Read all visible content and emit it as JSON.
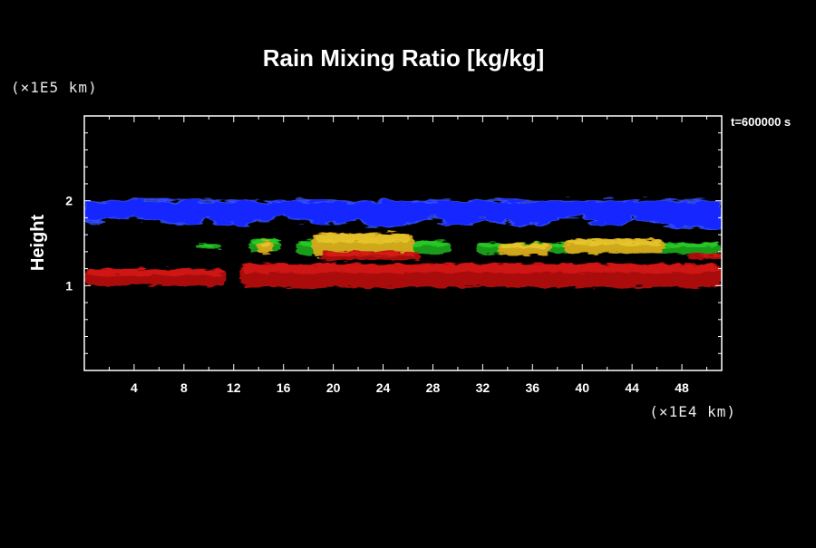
{
  "chart_data": {
    "type": "heatmap",
    "title": "Rain Mixing Ratio [kg/kg]",
    "ylabel": "Height",
    "xlabel": "",
    "x_unit": "(×1E4 km)",
    "y_unit": "(×1E5 km)",
    "time": "t=600000 s",
    "xlim": [
      0,
      51.2
    ],
    "ylim": [
      0,
      3
    ],
    "x_ticks": [
      4,
      8,
      12,
      16,
      20,
      24,
      28,
      32,
      36,
      40,
      44,
      48
    ],
    "y_ticks": [
      1,
      2
    ],
    "x_minor_step": 2,
    "y_minor_step": 0.2,
    "grid": false,
    "background": "#000000",
    "layers": [
      {
        "color": "#1428ff",
        "edge_color": "#3c5cff",
        "y_top": 2.0,
        "x": [
          0,
          2,
          4,
          6,
          8,
          10,
          12,
          14,
          16,
          18,
          20,
          22,
          24,
          26,
          28,
          30,
          32,
          34,
          36,
          38,
          40,
          42,
          44,
          46,
          48,
          51.2
        ],
        "y_bottom": [
          1.76,
          1.8,
          1.84,
          1.78,
          1.74,
          1.79,
          1.73,
          1.8,
          1.84,
          1.78,
          1.76,
          1.8,
          1.71,
          1.77,
          1.82,
          1.74,
          1.8,
          1.77,
          1.73,
          1.8,
          1.83,
          1.74,
          1.82,
          1.77,
          1.71,
          1.7
        ]
      },
      {
        "color": "#1ea51e",
        "edge_color": "#34ff2e",
        "segments": [
          {
            "x": [
              9.0,
              11.0
            ],
            "y": [
              1.44,
              1.49
            ]
          },
          {
            "x": [
              13.2,
              15.8
            ],
            "y": [
              1.4,
              1.55
            ]
          },
          {
            "x": [
              17.0,
              29.5
            ],
            "y": [
              1.37,
              1.53
            ]
          },
          {
            "x": [
              31.5,
              51.2
            ],
            "y": [
              1.38,
              1.51
            ]
          }
        ]
      },
      {
        "color": "#d9a81f",
        "edge_color": "#ffea3c",
        "segments": [
          {
            "x": [
              13.8,
              15.2
            ],
            "y": [
              1.39,
              1.52
            ]
          },
          {
            "x": [
              18.3,
              26.4
            ],
            "y": [
              1.34,
              1.62
            ]
          },
          {
            "x": [
              33.2,
              37.5
            ],
            "y": [
              1.36,
              1.5
            ]
          },
          {
            "x": [
              38.5,
              46.6
            ],
            "y": [
              1.38,
              1.55
            ]
          }
        ]
      },
      {
        "color": "#b40f0f",
        "edge_color": "#ff2020",
        "segments": [
          {
            "x": [
              0,
              11.4
            ],
            "y": [
              1.0,
              1.2
            ]
          },
          {
            "x": [
              12.5,
              51.2
            ],
            "y": [
              0.98,
              1.26
            ]
          },
          {
            "x": [
              19.0,
              27.0
            ],
            "y": [
              1.3,
              1.4
            ]
          },
          {
            "x": [
              48.5,
              51.2
            ],
            "y": [
              1.31,
              1.38
            ]
          }
        ]
      }
    ]
  }
}
